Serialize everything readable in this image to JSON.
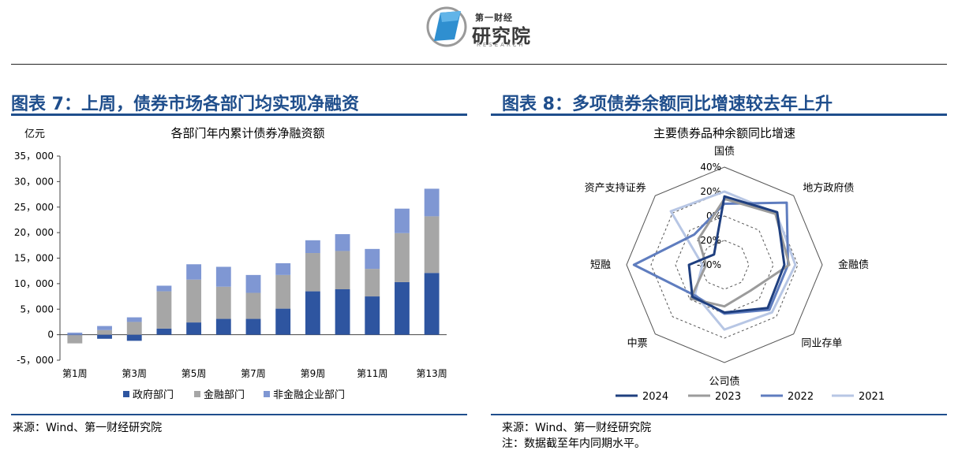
{
  "logo": {
    "small": "第一财经",
    "big": "研究院",
    "sub": "RESEARCH"
  },
  "left": {
    "figure_title": "图表 7：上周，债券市场各部门均实现净融资",
    "source": "来源：Wind、第一财经研究院"
  },
  "right": {
    "figure_title": "图表 8：多项债券余额同比增速较去年上升",
    "source": "来源：Wind、第一财经研究院",
    "note": "注：数据截至年内同期水平。"
  },
  "chart_data": [
    {
      "type": "bar",
      "stacked": true,
      "title": "各部门年内累计债券净融资额",
      "unit": "亿元",
      "categories": [
        "第1周",
        "第2周",
        "第3周",
        "第4周",
        "第5周",
        "第6周",
        "第7周",
        "第8周",
        "第9周",
        "第10周",
        "第11周",
        "第12周",
        "第13周"
      ],
      "x_tick_labels": [
        "第1周",
        "",
        "第3周",
        "",
        "第5周",
        "",
        "第7周",
        "",
        "第9周",
        "",
        "第11周",
        "",
        "第13周"
      ],
      "y_ticks": [
        -5000,
        0,
        5000,
        10000,
        15000,
        20000,
        25000,
        30000,
        35000
      ],
      "y_tick_labels": [
        "-5，000",
        "0",
        "5，000",
        "10，000",
        "15，000",
        "20，000",
        "25，000",
        "30，000",
        "35，000"
      ],
      "ylim": [
        -5000,
        35000
      ],
      "series": [
        {
          "name": "政府部门",
          "color": "#2e55a0",
          "values": [
            -100,
            -800,
            -1200,
            1200,
            2400,
            3100,
            3100,
            5100,
            8500,
            8900,
            7500,
            10300,
            12100
          ]
        },
        {
          "name": "金融部门",
          "color": "#a6a6a6",
          "values": [
            -1600,
            900,
            2500,
            7300,
            8400,
            6300,
            5100,
            6600,
            7500,
            7500,
            5400,
            9600,
            11100
          ]
        },
        {
          "name": "非金融企业部门",
          "color": "#7f97d3",
          "values": [
            400,
            800,
            900,
            1100,
            3000,
            3900,
            3500,
            2300,
            2500,
            3300,
            3900,
            4800,
            5400
          ]
        }
      ],
      "legend_position": "bottom",
      "grid": false
    },
    {
      "type": "radar",
      "title": "主要债券品种余额同比增速",
      "axes": [
        "国债",
        "地方政府债",
        "金融债",
        "同业存单",
        "公司债",
        "中票",
        "短融",
        "资产支持证券"
      ],
      "rlim": [
        -40,
        40
      ],
      "r_ticks": [
        -40,
        -20,
        0,
        20,
        40
      ],
      "r_tick_labels": [
        "-40%",
        "-20%",
        "0%",
        "20%",
        "40%"
      ],
      "series": [
        {
          "name": "2024",
          "color": "#1f3f7f",
          "values": [
            16,
            21,
            9,
            10,
            -1,
            -3,
            -11,
            -28
          ]
        },
        {
          "name": "2023",
          "color": "#9b9b9b",
          "values": [
            14,
            19,
            13,
            -10,
            -6,
            -1,
            -25,
            -10
          ]
        },
        {
          "name": "2022",
          "color": "#5f7dbf",
          "values": [
            10,
            32,
            12,
            12,
            0,
            -5,
            34,
            -5
          ]
        },
        {
          "name": "2021",
          "color": "#b7c6e4",
          "values": [
            20,
            20,
            18,
            15,
            13,
            -6,
            -22,
            22
          ]
        }
      ],
      "legend_position": "bottom",
      "grid": true
    }
  ]
}
